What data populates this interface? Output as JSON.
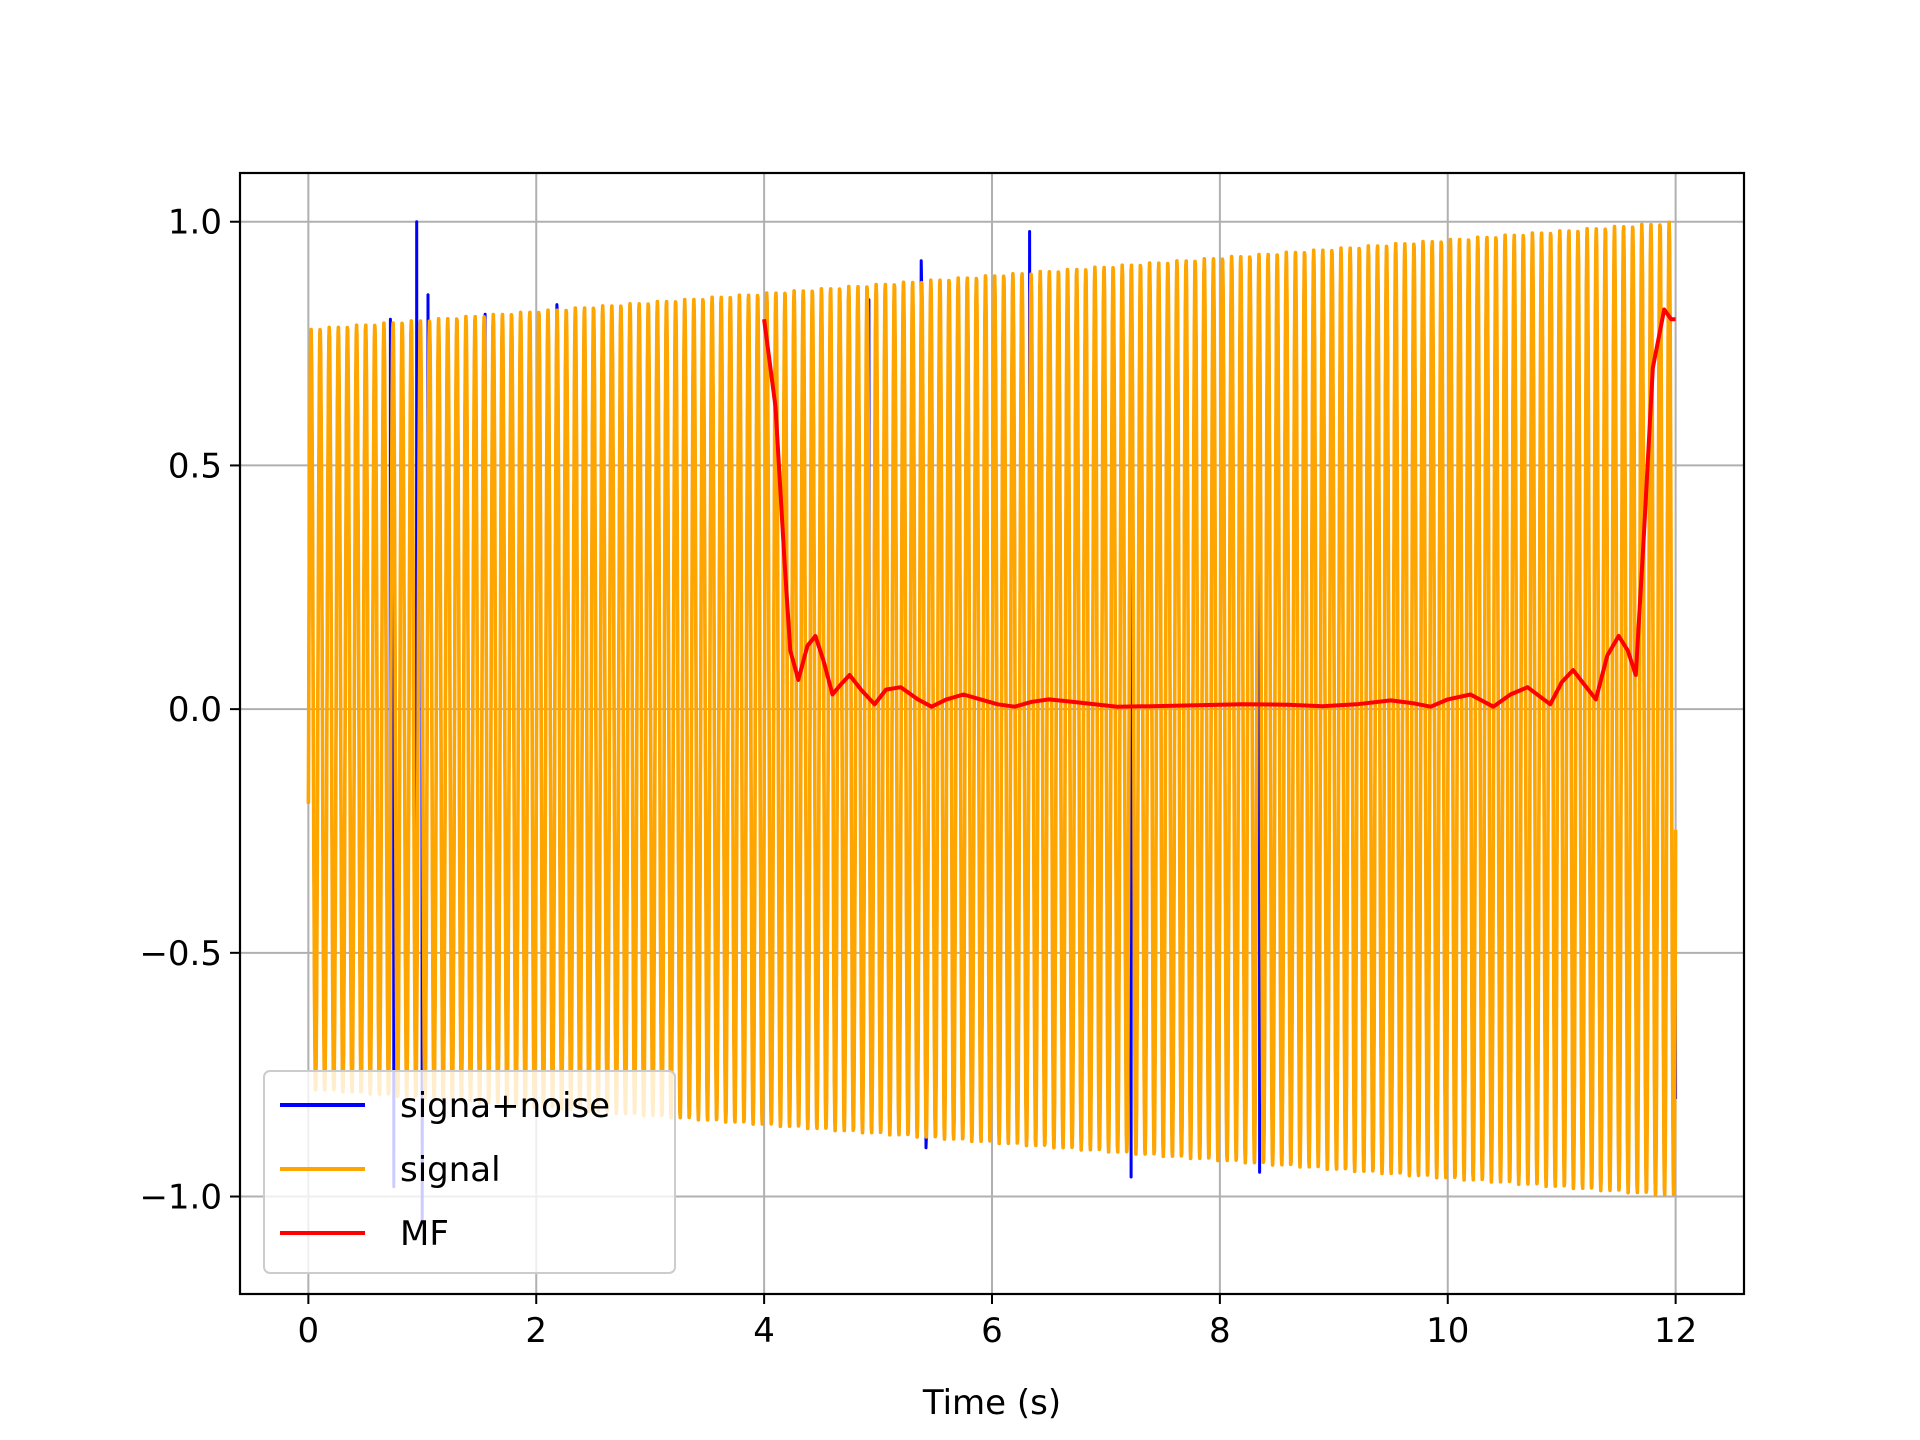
{
  "chart_data": {
    "type": "line",
    "title": "",
    "xlabel": "Time (s)",
    "ylabel": "",
    "xlim": [
      -0.6,
      12.6
    ],
    "ylim": [
      -1.2,
      1.1
    ],
    "x_ticks": [
      0,
      2,
      4,
      6,
      8,
      10,
      12
    ],
    "x_tick_labels": [
      "0",
      "2",
      "4",
      "6",
      "8",
      "10",
      "12"
    ],
    "y_ticks": [
      -1.0,
      -0.5,
      0.0,
      0.5,
      1.0
    ],
    "y_tick_labels": [
      "−1.0",
      "−0.5",
      "0.0",
      "0.5",
      "1.0"
    ],
    "grid": true,
    "legend_position": "lower-left",
    "series": [
      {
        "name": "signa+noise",
        "color": "#0000ff",
        "kind": "oscillation",
        "t_start": 0,
        "t_end": 12,
        "amplitude_start": 0.78,
        "amplitude_end": 1.0,
        "cycles": 150,
        "spikes": [
          {
            "t": 0.95,
            "y": 1.0
          },
          {
            "t": 1.05,
            "y": 0.85
          },
          {
            "t": 0.72,
            "y": 0.8
          },
          {
            "t": 1.55,
            "y": 0.81
          },
          {
            "t": 2.18,
            "y": 0.83
          },
          {
            "t": 4.92,
            "y": 0.84
          },
          {
            "t": 5.38,
            "y": 0.92
          },
          {
            "t": 6.33,
            "y": 0.98
          },
          {
            "t": 0.75,
            "y": -0.98
          },
          {
            "t": 1.0,
            "y": -1.05
          },
          {
            "t": 5.42,
            "y": -0.9
          },
          {
            "t": 7.22,
            "y": -0.96
          },
          {
            "t": 8.35,
            "y": -0.95
          },
          {
            "t": 12.0,
            "y": -0.8
          }
        ]
      },
      {
        "name": "signal",
        "color": "#ffa500",
        "kind": "oscillation",
        "t_start": 0,
        "t_end": 12,
        "amplitude_start": 0.78,
        "amplitude_end": 1.0,
        "cycles": 150
      },
      {
        "name": "MF",
        "color": "#ff0000",
        "kind": "line",
        "x": [
          4.0,
          4.1,
          4.18,
          4.23,
          4.3,
          4.38,
          4.45,
          4.52,
          4.6,
          4.67,
          4.75,
          4.85,
          4.97,
          5.07,
          5.2,
          5.35,
          5.47,
          5.6,
          5.75,
          5.9,
          6.05,
          6.2,
          6.35,
          6.5,
          6.7,
          6.9,
          7.1,
          7.4,
          7.8,
          8.2,
          8.6,
          8.9,
          9.2,
          9.5,
          9.7,
          9.85,
          10.0,
          10.2,
          10.4,
          10.55,
          10.7,
          10.9,
          11.0,
          11.1,
          11.2,
          11.3,
          11.4,
          11.5,
          11.58,
          11.65,
          11.72,
          11.8,
          11.9,
          11.96,
          12.0
        ],
        "y": [
          0.8,
          0.62,
          0.3,
          0.12,
          0.06,
          0.13,
          0.15,
          0.1,
          0.03,
          0.05,
          0.07,
          0.04,
          0.01,
          0.04,
          0.045,
          0.02,
          0.005,
          0.02,
          0.03,
          0.02,
          0.01,
          0.005,
          0.015,
          0.02,
          0.015,
          0.01,
          0.005,
          0.006,
          0.008,
          0.01,
          0.009,
          0.006,
          0.01,
          0.018,
          0.012,
          0.005,
          0.02,
          0.03,
          0.005,
          0.03,
          0.045,
          0.01,
          0.055,
          0.08,
          0.05,
          0.02,
          0.11,
          0.15,
          0.12,
          0.07,
          0.35,
          0.7,
          0.82,
          0.8,
          0.8
        ]
      }
    ]
  }
}
